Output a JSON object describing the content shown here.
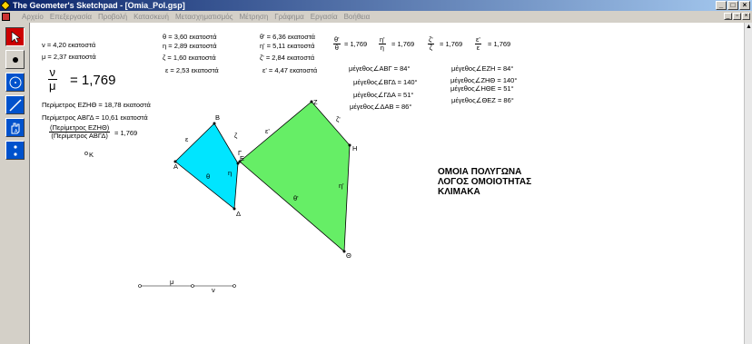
{
  "window": {
    "title": "The Geometer's Sketchpad - [Omia_Pol.gsp]"
  },
  "menu": [
    "Αρχείο",
    "Επεξεργασία",
    "Προβολή",
    "Κατασκευή",
    "Μετασχηματισμός",
    "Μέτρηση",
    "Γράφημα",
    "Εργασία",
    "Βοήθεια"
  ],
  "tools": [
    "pointer-tool",
    "point-tool",
    "compass-tool",
    "straightedge-tool",
    "text-tool",
    "custom-tool"
  ],
  "measurements": {
    "nu": "ν = 4,20 εκατοστά",
    "mu": "μ = 2,37 εκατοστά",
    "theta": "θ = 3,60 εκατοστά",
    "eta": "η = 2,89 εκατοστά",
    "zeta": "ζ = 1,60 εκατοστά",
    "epsilon": "ε = 2,53 εκατοστά",
    "theta_p": "θ' = 6,36 εκατοστά",
    "eta_p": "η' = 5,11 εκατοστά",
    "zeta_p": "ζ' = 2,84 εκατοστά",
    "epsilon_p": "ε' = 4,47 εκατοστά"
  },
  "ratios": [
    {
      "num": "θ'",
      "den": "θ",
      "value": "= 1,769"
    },
    {
      "num": "η'",
      "den": "η",
      "value": "= 1,769"
    },
    {
      "num": "ζ'",
      "den": "ζ",
      "value": "= 1,769"
    },
    {
      "num": "ε'",
      "den": "ε",
      "value": "= 1,769"
    }
  ],
  "big_ratio": {
    "num": "ν",
    "den": "μ",
    "value": "= 1,769"
  },
  "perimeters": {
    "ezhth": "Περίμετρος ΕΖΗΘ = 18,78 εκατοστά",
    "abgd": "Περίμετρος ΑΒΓΔ = 10,61 εκατοστά",
    "ratio_num": "(Περίμετρος ΕΖΗΘ)",
    "ratio_den": "(Περίμετρος ΑΒΓΔ)",
    "ratio_value": "= 1,769"
  },
  "angles_left": [
    "μέγεθος∠ΑΒΓ = 84°",
    "μέγεθος∠ΒΓΔ = 140°",
    "μέγεθος∠ΓΔΑ = 51°",
    "μέγεθος∠ΔΑΒ = 86°"
  ],
  "angles_right": [
    "μέγεθος∠ΕΖΗ = 84°",
    "μέγεθος∠ΖΗΘ = 140°",
    "μέγεθος∠ΗΘΕ = 51°",
    "μέγεθος∠ΘΕΖ = 86°"
  ],
  "heading": [
    "ΟΜΟΙΑ ΠΟΛΥΓΩΝΑ",
    "ΛΟΓΟΣ ΟΜΟΙΟΤΗΤΑΣ",
    "ΚΛΙΜΑΚΑ"
  ],
  "labels": {
    "K": "Κ",
    "A": "Α",
    "B": "Β",
    "G": "Γ",
    "D": "Δ",
    "eps": "ε",
    "zeta": "ζ",
    "eta": "η",
    "theta": "θ",
    "E": "Ε",
    "Z": "Ζ",
    "H": "Η",
    "TH": "Θ",
    "epsp": "ε'",
    "zetap": "ζ'",
    "etap": "η'",
    "thetap": "θ'",
    "mu": "μ",
    "nu": "ν"
  },
  "colors": {
    "small_quad": "#00e5ff",
    "large_quad": "#66ee66",
    "title_bar": "#0a246a",
    "selected_tool": "#cc0000"
  }
}
